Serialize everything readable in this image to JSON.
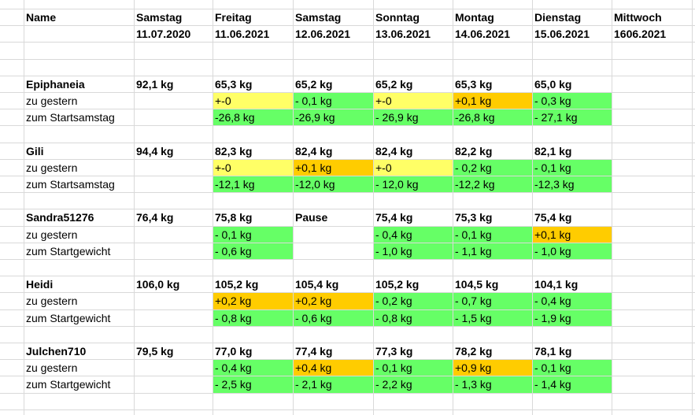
{
  "header": {
    "name_label": "Name",
    "columns": [
      {
        "day": "Samstag",
        "date": "11.07.2020"
      },
      {
        "day": "Freitag",
        "date": "11.06.2021"
      },
      {
        "day": "Samstag",
        "date": "12.06.2021"
      },
      {
        "day": "Sonntag",
        "date": "13.06.2021"
      },
      {
        "day": "Montag",
        "date": "14.06.2021"
      },
      {
        "day": "Dienstag",
        "date": "15.06.2021"
      },
      {
        "day": "Mittwoch",
        "date": "1606.2021"
      }
    ]
  },
  "colors": {
    "same": "#ffff66",
    "loss": "#66ff66",
    "gain": "#ffcc00",
    "gridline": "#d9d9d9"
  },
  "groups": [
    {
      "name": "Epiphaneia",
      "weights": [
        "92,1 kg",
        "65,3 kg",
        "65,2 kg",
        "65,2 kg",
        "65,3 kg",
        "65,0 kg",
        ""
      ],
      "rows": [
        {
          "label": "zu gestern",
          "values": [
            "",
            "+-0",
            "- 0,1 kg",
            "+-0",
            "+0,1 kg",
            "- 0,3 kg",
            ""
          ],
          "status": [
            "",
            "same",
            "loss",
            "same",
            "gain",
            "loss",
            ""
          ]
        },
        {
          "label": "zum Startsamstag",
          "values": [
            "",
            "-26,8 kg",
            "-26,9 kg",
            "- 26,9 kg",
            "-26,8 kg",
            "- 27,1 kg",
            ""
          ],
          "status": [
            "",
            "loss",
            "loss",
            "loss",
            "loss",
            "loss",
            ""
          ]
        }
      ]
    },
    {
      "name": "Gili",
      "weights": [
        "94,4 kg",
        "82,3 kg",
        "82,4 kg",
        "82,4 kg",
        "82,2 kg",
        "82,1 kg",
        ""
      ],
      "rows": [
        {
          "label": "zu gestern",
          "values": [
            "",
            "+-0",
            "+0,1 kg",
            "+-0",
            "- 0,2 kg",
            "- 0,1 kg",
            ""
          ],
          "status": [
            "",
            "same",
            "gain",
            "same",
            "loss",
            "loss",
            ""
          ]
        },
        {
          "label": "zum Startsamstag",
          "values": [
            "",
            "-12,1 kg",
            "-12,0 kg",
            "- 12,0 kg",
            "-12,2 kg",
            "-12,3 kg",
            ""
          ],
          "status": [
            "",
            "loss",
            "loss",
            "loss",
            "loss",
            "loss",
            ""
          ]
        }
      ]
    },
    {
      "name": "Sandra51276",
      "weights": [
        "76,4 kg",
        "75,8 kg",
        "Pause",
        "75,4 kg",
        "75,3 kg",
        "75,4 kg",
        ""
      ],
      "rows": [
        {
          "label": "zu gestern",
          "values": [
            "",
            "- 0,1 kg",
            "",
            "- 0,4 kg",
            "- 0,1 kg",
            "+0,1 kg",
            ""
          ],
          "status": [
            "",
            "loss",
            "",
            "loss",
            "loss",
            "gain",
            ""
          ]
        },
        {
          "label": "zum Startgewicht",
          "values": [
            "",
            "- 0,6 kg",
            "",
            "- 1,0 kg",
            "- 1,1 kg",
            "- 1,0 kg",
            ""
          ],
          "status": [
            "",
            "loss",
            "",
            "loss",
            "loss",
            "loss",
            ""
          ]
        }
      ]
    },
    {
      "name": "Heidi",
      "weights": [
        "106,0 kg",
        "105,2  kg",
        "105,4 kg",
        "105,2 kg",
        "104,5 kg",
        "104,1 kg",
        ""
      ],
      "rows": [
        {
          "label": "zu gestern",
          "values": [
            "",
            "+0,2 kg",
            "+0,2 kg",
            " - 0,2 kg",
            "- 0,7 kg",
            "- 0,4 kg",
            ""
          ],
          "status": [
            "",
            "gain",
            "gain",
            "loss",
            "loss",
            "loss",
            ""
          ]
        },
        {
          "label": "zum Startgewicht",
          "values": [
            "",
            "- 0,8 kg",
            "- 0,6 kg",
            " - 0,8 kg",
            "- 1,5 kg",
            "- 1,9 kg",
            ""
          ],
          "status": [
            "",
            "loss",
            "loss",
            "loss",
            "loss",
            "loss",
            ""
          ]
        }
      ]
    },
    {
      "name": "Julchen710",
      "weights": [
        "79,5 kg",
        "77,0 kg",
        "77,4 kg",
        "77,3 kg",
        "78,2 kg",
        "78,1 kg",
        ""
      ],
      "rows": [
        {
          "label": "zu gestern",
          "values": [
            "",
            "- 0,4 kg",
            "+0,4 kg",
            "- 0,1 kg",
            "+0,9 kg",
            "- 0,1 kg",
            ""
          ],
          "status": [
            "",
            "loss",
            "gain",
            "loss",
            "gain",
            "loss",
            ""
          ]
        },
        {
          "label": "zum Startgewicht",
          "values": [
            "",
            "- 2,5 kg",
            "- 2,1 kg",
            "- 2,2 kg",
            "- 1,3 kg",
            "- 1,4 kg",
            ""
          ],
          "status": [
            "",
            "loss",
            "loss",
            "loss",
            "loss",
            "loss",
            ""
          ]
        }
      ]
    }
  ]
}
